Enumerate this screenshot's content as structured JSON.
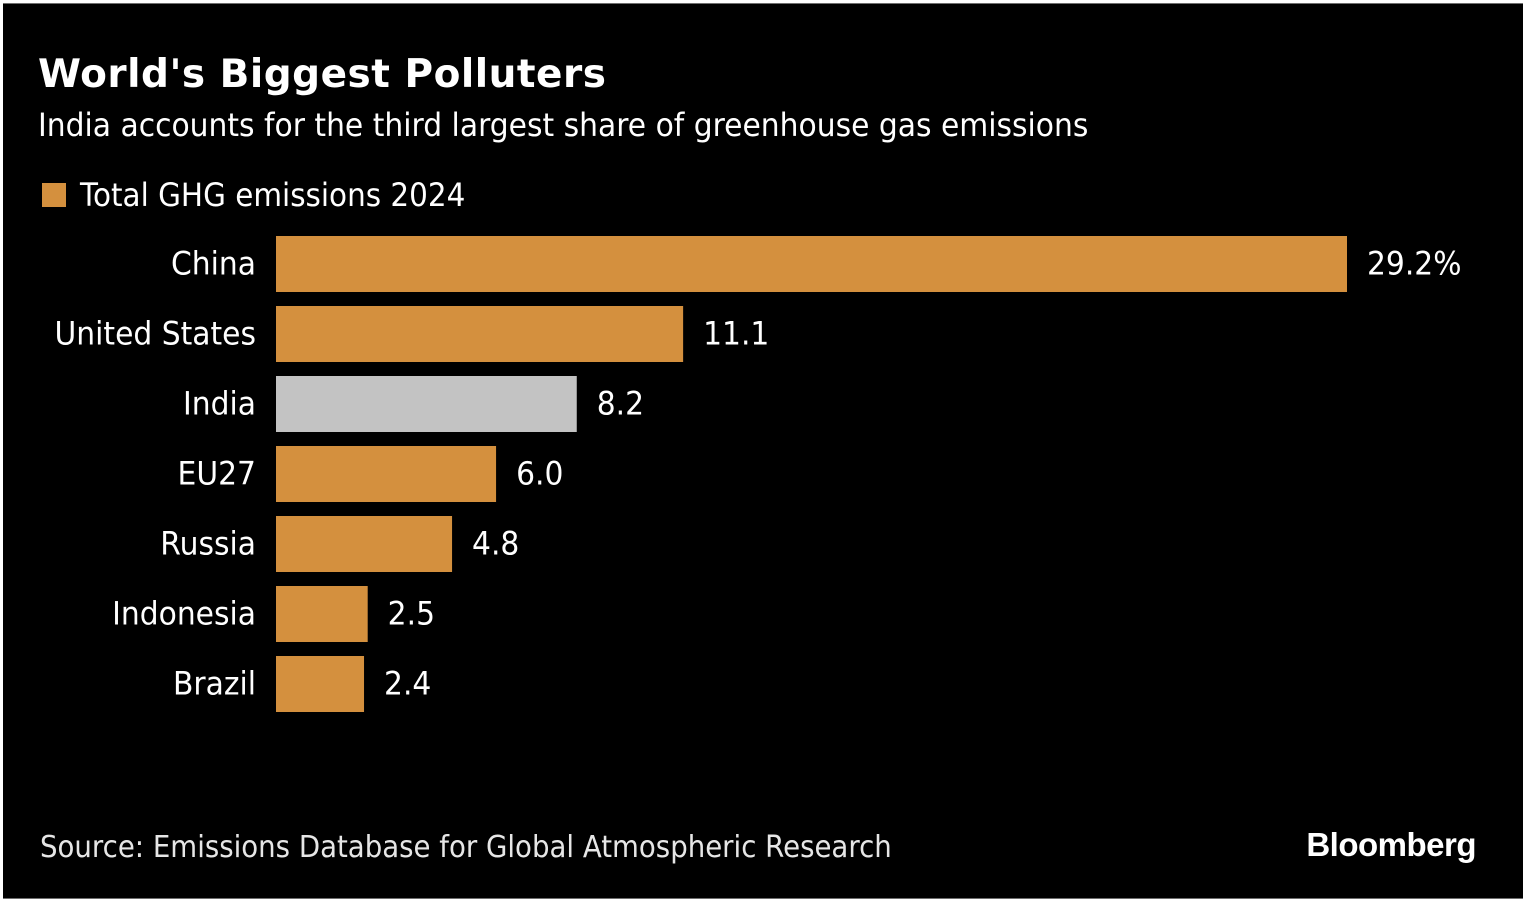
{
  "header": {
    "title": "World's Biggest Polluters",
    "subtitle": "India accounts for the third largest share of greenhouse gas emissions"
  },
  "legend": {
    "label": "Total GHG emissions 2024",
    "color": "#d4903e"
  },
  "footer": {
    "source": "Source: Emissions Database for Global Atmospheric Research",
    "brand": "Bloomberg"
  },
  "colors": {
    "background": "#000000",
    "bar": "#d4903e",
    "highlight_bar": "#c3c3c3",
    "text": "#ffffff"
  },
  "chart_data": {
    "type": "bar",
    "orientation": "horizontal",
    "title": "World's Biggest Polluters",
    "subtitle": "India accounts for the third largest share of greenhouse gas emissions",
    "xlabel": "",
    "ylabel": "",
    "unit": "%",
    "xlim": [
      0,
      29.2
    ],
    "grid": false,
    "legend_position": "top-left",
    "categories": [
      "China",
      "United States",
      "India",
      "EU27",
      "Russia",
      "Indonesia",
      "Brazil"
    ],
    "series": [
      {
        "name": "Total GHG emissions 2024",
        "values": [
          29.2,
          11.1,
          8.2,
          6.0,
          4.8,
          2.5,
          2.4
        ]
      }
    ],
    "data_labels": [
      "29.2%",
      "11.1",
      "8.2",
      "6.0",
      "4.8",
      "2.5",
      "2.4"
    ],
    "highlighted_category": "India",
    "source": "Source: Emissions Database for Global Atmospheric Research"
  }
}
